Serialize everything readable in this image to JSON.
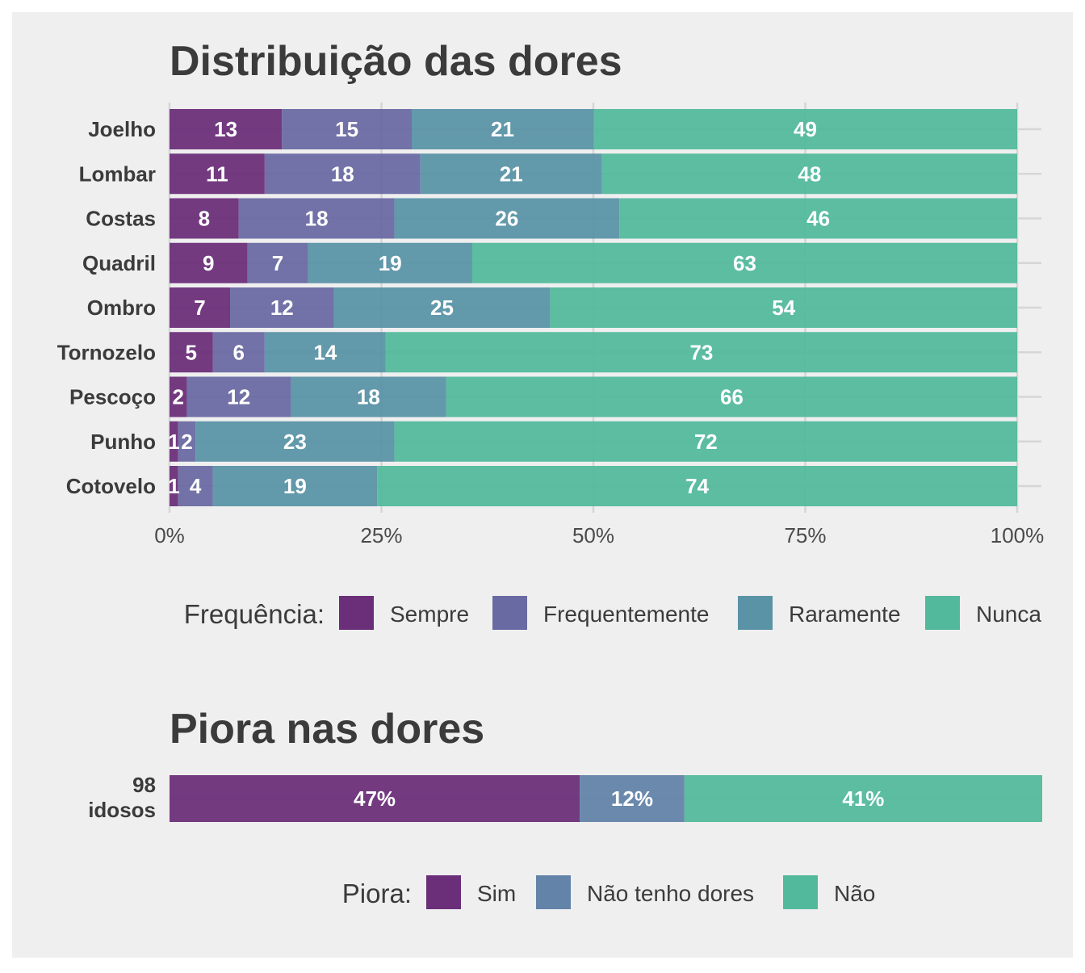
{
  "colors": {
    "Sempre": "#6b2f79",
    "Frequentemente": "#6a6aa3",
    "Raramente": "#5a93a6",
    "Nunca": "#53b99c",
    "Sim": "#6b2f79",
    "Não tenho dores": "#6383a8",
    "Não": "#53b99c",
    "panel_bg": "#efefef",
    "grid": "#d6d6d6"
  },
  "chart_data": [
    {
      "type": "bar",
      "orientation": "horizontal",
      "stacked": "percent",
      "title": "Distribuição das dores",
      "categories": [
        "Joelho",
        "Lombar",
        "Costas",
        "Quadril",
        "Ombro",
        "Tornozelo",
        "Pescoço",
        "Punho",
        "Cotovelo"
      ],
      "series": [
        {
          "name": "Sempre",
          "values": [
            13,
            11,
            8,
            9,
            7,
            5,
            2,
            1,
            1
          ]
        },
        {
          "name": "Frequentemente",
          "values": [
            15,
            18,
            18,
            7,
            12,
            6,
            12,
            2,
            4
          ]
        },
        {
          "name": "Raramente",
          "values": [
            21,
            21,
            26,
            19,
            25,
            14,
            18,
            23,
            19
          ]
        },
        {
          "name": "Nunca",
          "values": [
            49,
            48,
            46,
            63,
            54,
            73,
            66,
            72,
            74
          ]
        }
      ],
      "xticks": [
        "0%",
        "25%",
        "50%",
        "75%",
        "100%"
      ],
      "xlim": [
        0,
        1
      ],
      "grid": true,
      "legend": {
        "title": "Frequência:",
        "position": "bottom",
        "entries": [
          "Sempre",
          "Frequentemente",
          "Raramente",
          "Nunca"
        ]
      }
    },
    {
      "type": "bar",
      "orientation": "horizontal",
      "stacked": "percent",
      "title": "Piora nas dores",
      "categories": [
        "98 idosos"
      ],
      "category_lines": [
        "98",
        "idosos"
      ],
      "series": [
        {
          "name": "Sim",
          "values": [
            47
          ],
          "label": "47%"
        },
        {
          "name": "Não tenho dores",
          "values": [
            12
          ],
          "label": "12%"
        },
        {
          "name": "Não",
          "values": [
            41
          ],
          "label": "41%"
        }
      ],
      "grid": true,
      "legend": {
        "title": "Piora:",
        "position": "bottom",
        "entries": [
          "Sim",
          "Não tenho dores",
          "Não"
        ]
      }
    }
  ]
}
